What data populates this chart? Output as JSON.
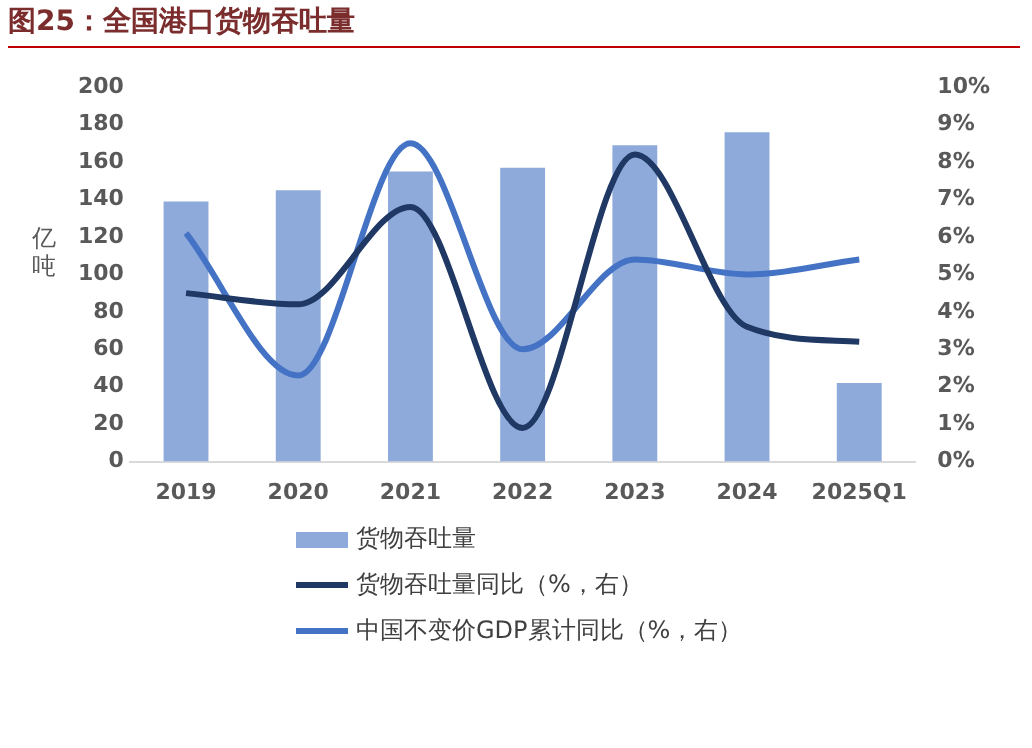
{
  "chart_data": {
    "type": "bar",
    "title": "图25：全国港口货物吞吐量",
    "ylabel": "亿吨",
    "categories": [
      "2019",
      "2020",
      "2021",
      "2022",
      "2023",
      "2024",
      "2025Q1"
    ],
    "series": [
      {
        "name": "货物吞吐量",
        "color": "#8eaadb",
        "values": [
          139,
          145,
          155,
          157,
          169,
          176,
          42
        ]
      },
      {
        "name": "货物吞吐量同比（%，右）",
        "type": "line",
        "axis": "y2",
        "color": "#1f3864",
        "values": [
          4.5,
          4.2,
          6.8,
          0.9,
          8.2,
          3.6,
          3.2
        ]
      },
      {
        "name": "中国不变价GDP累计同比（%，右）",
        "type": "line",
        "axis": "y2",
        "color": "#4472c4",
        "values": [
          6.1,
          2.3,
          8.5,
          3.0,
          5.4,
          5.0,
          5.4
        ]
      }
    ],
    "ylim": [
      0,
      200
    ],
    "yticks": [
      0,
      20,
      40,
      60,
      80,
      100,
      120,
      140,
      160,
      180,
      200
    ],
    "y2lim": [
      0,
      10
    ],
    "y2ticks": [
      {
        "value": 0,
        "label": "0%"
      },
      {
        "value": 1,
        "label": "1%"
      },
      {
        "value": 2,
        "label": "2%"
      },
      {
        "value": 3,
        "label": "3%"
      },
      {
        "value": 4,
        "label": "4%"
      },
      {
        "value": 5,
        "label": "5%"
      },
      {
        "value": 6,
        "label": "6%"
      },
      {
        "value": 7,
        "label": "7%"
      },
      {
        "value": 8,
        "label": "8%"
      },
      {
        "value": 9,
        "label": "9%"
      },
      {
        "value": 10,
        "label": "10%"
      }
    ],
    "grid": false,
    "legend": "bottom",
    "marker": "none",
    "line_style": "solid"
  }
}
